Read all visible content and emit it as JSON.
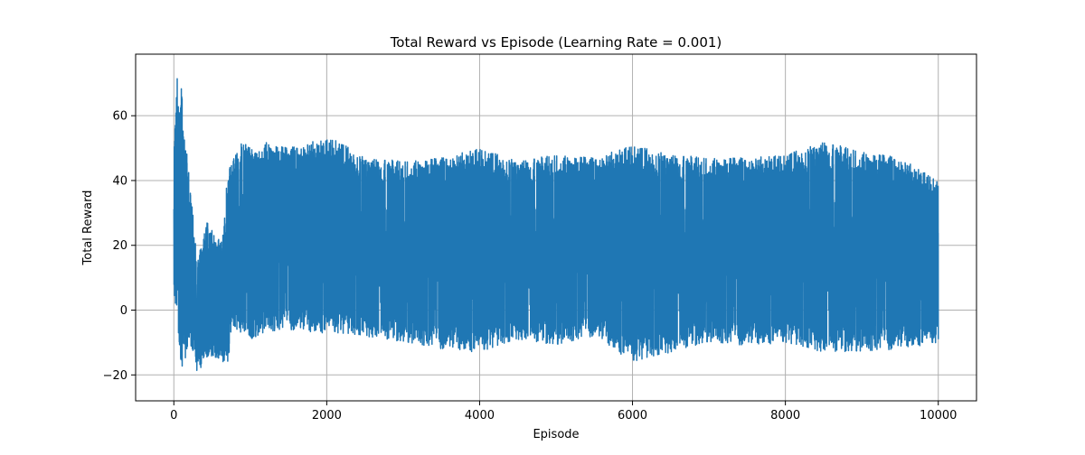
{
  "chart_data": {
    "type": "line",
    "title": "Total Reward vs Episode (Learning Rate = 0.001)",
    "xlabel": "Episode",
    "ylabel": "Total Reward",
    "xlim": [
      -500,
      10500
    ],
    "ylim": [
      -28,
      79
    ],
    "xticks": [
      0,
      2000,
      4000,
      6000,
      8000,
      10000
    ],
    "xtick_labels": [
      "0",
      "2000",
      "4000",
      "6000",
      "8000",
      "10000"
    ],
    "yticks": [
      -20,
      0,
      20,
      40,
      60
    ],
    "ytick_labels": [
      "−20",
      "0",
      "20",
      "40",
      "60"
    ],
    "grid": true,
    "legend": "none",
    "series": [
      {
        "color": "#1f77b4",
        "n_points": 10000,
        "envelope": {
          "episode": [
            0,
            25,
            50,
            75,
            100,
            125,
            150,
            175,
            200,
            225,
            250,
            275,
            300,
            325,
            350,
            400,
            450,
            500,
            550,
            600,
            650,
            700,
            750,
            800,
            900,
            1000,
            1200,
            1500,
            1800,
            2100,
            2500,
            3000,
            3500,
            4000,
            4500,
            5000,
            5500,
            6000,
            6500,
            7000,
            7500,
            8000,
            8500,
            9000,
            9500,
            10000
          ],
          "low": [
            3,
            2,
            0,
            -18,
            -23,
            -8,
            -15,
            -12,
            -10,
            -12,
            -14,
            -13,
            -19,
            -17,
            -18,
            -14,
            -15,
            -14,
            -16,
            -15,
            -17,
            -18,
            -7,
            -6,
            -9,
            -9,
            -7,
            -6,
            -7,
            -7,
            -8,
            -10,
            -12,
            -13,
            -9,
            -11,
            -8,
            -16,
            -13,
            -10,
            -11,
            -10,
            -13,
            -13,
            -12,
            -10
          ],
          "high": [
            46,
            65,
            74,
            66,
            71,
            59,
            50,
            48,
            41,
            34,
            31,
            22,
            17,
            16,
            20,
            25,
            28,
            25,
            23,
            24,
            23,
            44,
            45,
            48,
            52,
            50,
            52,
            50,
            52,
            53,
            47,
            46,
            47,
            50,
            46,
            48,
            47,
            51,
            48,
            47,
            47,
            48,
            52,
            49,
            47,
            40
          ]
        }
      }
    ]
  }
}
